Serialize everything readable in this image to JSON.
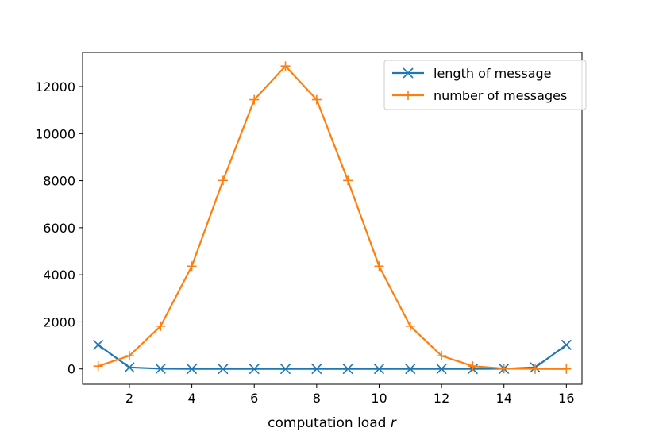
{
  "chart_data": {
    "type": "line",
    "title": "",
    "xlabel": "computation load",
    "xlabel_var": "r",
    "ylabel": "",
    "xlim": [
      0.5,
      16.5
    ],
    "ylim": [
      -650,
      13450
    ],
    "xticks": [
      2,
      4,
      6,
      8,
      10,
      12,
      14,
      16
    ],
    "yticks": [
      0,
      2000,
      4000,
      6000,
      8000,
      10000,
      12000
    ],
    "grid": false,
    "legend_position": "top-right",
    "x": [
      1,
      2,
      3,
      4,
      5,
      6,
      7,
      8,
      9,
      10,
      11,
      12,
      13,
      14,
      15,
      16
    ],
    "series": [
      {
        "name": "length of message",
        "color": "#1f77b4",
        "marker": "x",
        "values": [
          1024,
          64,
          9,
          3,
          2,
          1,
          1,
          1,
          1,
          1,
          1,
          2,
          3,
          9,
          64,
          1024
        ]
      },
      {
        "name": "number of messages",
        "color": "#ff7f0e",
        "marker": "+",
        "values": [
          120,
          560,
          1820,
          4368,
          8008,
          11440,
          12870,
          11440,
          8008,
          4368,
          1820,
          560,
          120,
          16,
          1,
          0
        ]
      }
    ]
  }
}
